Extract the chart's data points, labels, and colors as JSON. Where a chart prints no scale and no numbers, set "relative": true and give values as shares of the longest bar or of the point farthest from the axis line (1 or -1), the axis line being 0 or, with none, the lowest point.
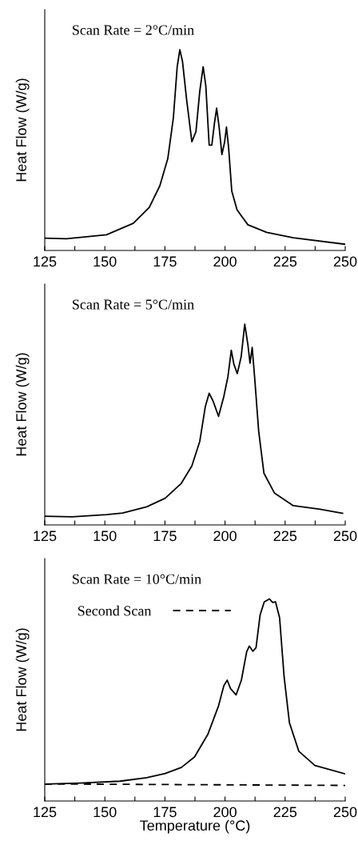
{
  "chart_data": [
    {
      "type": "line",
      "ylabel": "Heat Flow (W/g)",
      "relative": true,
      "tick_labels": "x",
      "annotations": [
        "Scan Rate = 2°C/min"
      ],
      "xlim": [
        125,
        250
      ],
      "xticks": [
        125,
        {
          "value": 137.5,
          "label": null
        },
        150,
        {
          "value": 162.5,
          "label": null
        },
        175,
        {
          "value": 187.5,
          "label": null
        },
        200,
        {
          "value": 212.5,
          "label": null
        },
        225,
        {
          "value": 237.5,
          "label": null
        },
        250
      ],
      "series": [
        {
          "color": "#000000",
          "line_style": "solid",
          "x": [
            125,
            134,
            150.7,
            161.8,
            168.5,
            172.9,
            176.2,
            178.5,
            180.1,
            181.2,
            182.3,
            184,
            186.2,
            187.9,
            189.5,
            190.9,
            192,
            193.4,
            194.5,
            195.6,
            196.5,
            197.5,
            198.7,
            199.8,
            200.6,
            201.5,
            202.8,
            205,
            209.5,
            217.3,
            228.4,
            250
          ],
          "values": [
            0.061,
            0.058,
            0.078,
            0.135,
            0.215,
            0.323,
            0.458,
            0.66,
            0.915,
            1.0,
            0.942,
            0.754,
            0.542,
            0.592,
            0.794,
            0.915,
            0.821,
            0.525,
            0.525,
            0.633,
            0.709,
            0.619,
            0.478,
            0.538,
            0.615,
            0.511,
            0.296,
            0.202,
            0.128,
            0.09,
            0.063,
            0.031
          ]
        }
      ]
    },
    {
      "type": "line",
      "ylabel": "Heat Flow (W/g)",
      "relative": true,
      "tick_labels": "x",
      "annotations": [
        "Scan Rate = 5°C/min"
      ],
      "xlim": [
        125,
        250
      ],
      "xticks": [
        125,
        {
          "value": 137.5,
          "label": null
        },
        150,
        {
          "value": 162.5,
          "label": null
        },
        175,
        {
          "value": 187.5,
          "label": null
        },
        200,
        {
          "value": 212.5,
          "label": null
        },
        225,
        {
          "value": 237.5,
          "label": null
        },
        250
      ],
      "series": [
        {
          "color": "#000000",
          "line_style": "solid",
          "x": [
            125,
            136.3,
            150.7,
            157.4,
            167.4,
            175.1,
            181.8,
            186.2,
            189.5,
            191.8,
            193.4,
            195.1,
            197.3,
            199.5,
            201.2,
            202.6,
            203.7,
            205.1,
            206.7,
            208.2,
            209.5,
            210.4,
            211.3,
            212.3,
            214,
            216.2,
            220.6,
            228.4,
            239.5,
            248.9
          ],
          "values": [
            0.043,
            0.04,
            0.051,
            0.059,
            0.09,
            0.133,
            0.207,
            0.294,
            0.417,
            0.59,
            0.656,
            0.615,
            0.541,
            0.64,
            0.738,
            0.87,
            0.8,
            0.754,
            0.837,
            1.0,
            0.899,
            0.806,
            0.884,
            0.738,
            0.467,
            0.257,
            0.158,
            0.096,
            0.078,
            0.058
          ]
        }
      ]
    },
    {
      "type": "line",
      "ylabel": "Heat Flow (W/g)",
      "xlabel": "Temperature (°C)",
      "relative": true,
      "tick_labels": "x",
      "legend": "top left",
      "annotations": [
        "Scan Rate = 10°C/min"
      ],
      "xlim": [
        125,
        250
      ],
      "xticks": [
        125,
        {
          "value": 137.5,
          "label": null
        },
        150,
        {
          "value": 162.5,
          "label": null
        },
        175,
        {
          "value": 187.5,
          "label": null
        },
        200,
        {
          "value": 212.5,
          "label": null
        },
        225,
        {
          "value": 237.5,
          "label": null
        },
        250
      ],
      "series": [
        {
          "color": "#000000",
          "line_style": "solid",
          "x": [
            125,
            139.6,
            156.3,
            167.4,
            175.1,
            181.8,
            187.3,
            192.9,
            197.3,
            199.5,
            200.9,
            202.3,
            204.6,
            206.8,
            209,
            210.1,
            211.6,
            212.9,
            214.6,
            216.3,
            218.5,
            219.8,
            221,
            222.7,
            224.6,
            226.8,
            230.7,
            237.4,
            250
          ],
          "values": [
            0.084,
            0.089,
            0.098,
            0.115,
            0.136,
            0.166,
            0.218,
            0.331,
            0.471,
            0.57,
            0.598,
            0.556,
            0.525,
            0.598,
            0.738,
            0.767,
            0.741,
            0.759,
            0.921,
            0.985,
            1.0,
            0.983,
            0.986,
            0.907,
            0.612,
            0.387,
            0.246,
            0.176,
            0.134
          ]
        },
        {
          "name": "Second Scan",
          "color": "#000000",
          "line_style": "dashed",
          "x": [
            125,
            150,
            200,
            250
          ],
          "values": [
            0.084,
            0.083,
            0.08,
            0.077
          ]
        }
      ]
    }
  ]
}
